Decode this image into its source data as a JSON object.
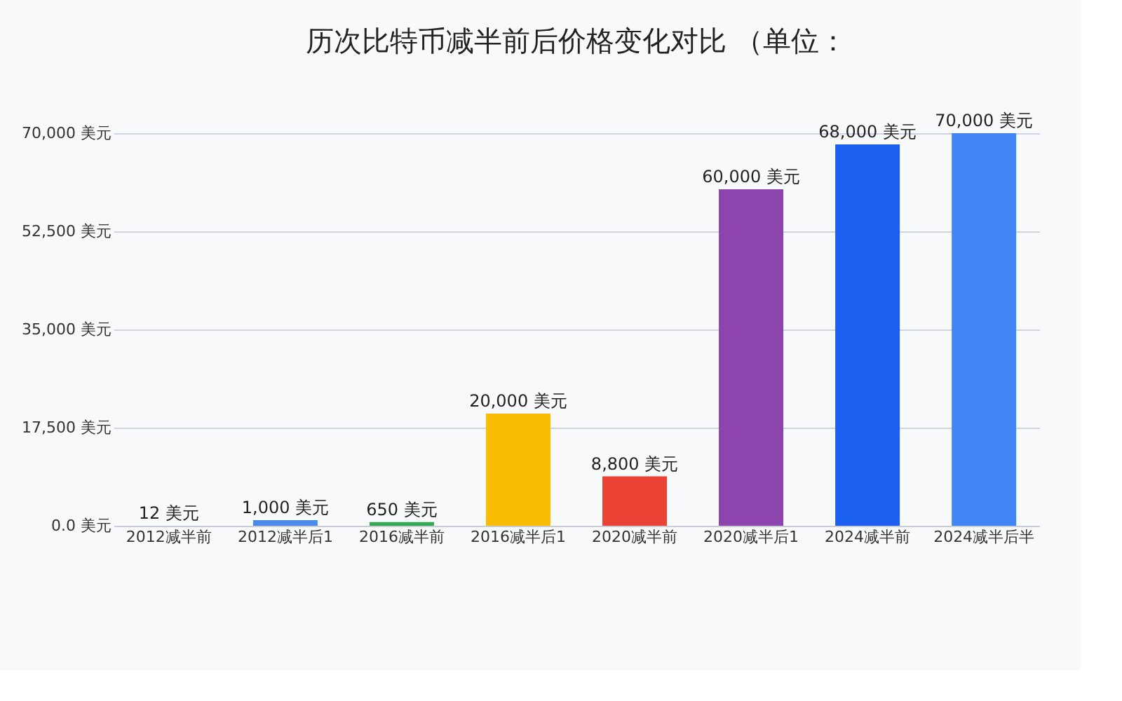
{
  "chart_data": {
    "type": "bar",
    "title": "历次比特币减半前后价格变化对比 （单位：",
    "categories": [
      "2012减半前",
      "2012减半后1",
      "2016减半前",
      "2016减半后1",
      "2020减半前",
      "2020减半后1",
      "2024减半前",
      "2024减半后半"
    ],
    "values": [
      12,
      1000,
      650,
      20000,
      8800,
      60000,
      68000,
      70000
    ],
    "colors": [
      "#3d6fcf",
      "#4a8ae8",
      "#34a853",
      "#fbbc04",
      "#ea4335",
      "#8e44ad",
      "#1a5ff0",
      "#4285f4"
    ],
    "value_labels": [
      "12 美元",
      "1,000 美元",
      "650 美元",
      "20,000 美元",
      "8,800 美元",
      "60,000 美元",
      "68,000 美元",
      "70,000 美元"
    ],
    "ylim": [
      0,
      70000
    ],
    "yticks": [
      {
        "value": 0,
        "label": "0.0 美元"
      },
      {
        "value": 17500,
        "label": "17,500 美元"
      },
      {
        "value": 35000,
        "label": "35,000 美元"
      },
      {
        "value": 52500,
        "label": "52,500 美元"
      },
      {
        "value": 70000,
        "label": "70,000 美元"
      }
    ],
    "grid": "y"
  }
}
